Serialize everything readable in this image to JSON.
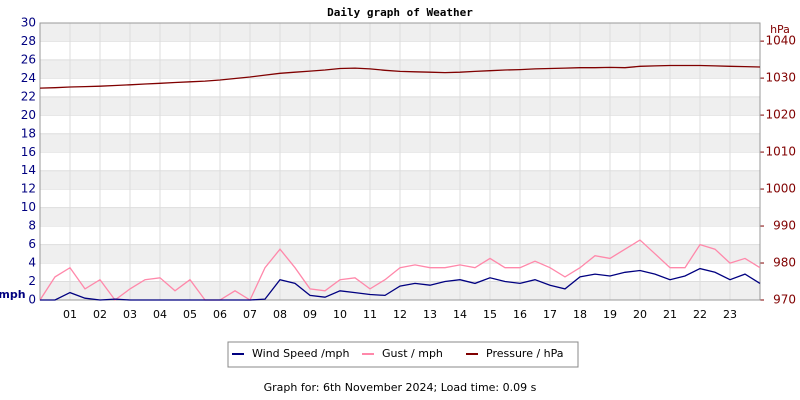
{
  "chart_data": {
    "type": "line",
    "title": "Daily graph of Weather",
    "ylabel": "mph",
    "y2label": "hPa",
    "footer": "Graph for: 6th November 2024; Load time: 0.09 s",
    "x": [
      0,
      0.5,
      1,
      1.5,
      2,
      2.5,
      3,
      3.5,
      4,
      4.5,
      5,
      5.5,
      6,
      6.5,
      7,
      7.5,
      8,
      8.5,
      9,
      9.5,
      10,
      10.5,
      11,
      11.5,
      12,
      12.5,
      13,
      13.5,
      14,
      14.5,
      15,
      15.5,
      16,
      16.5,
      17,
      17.5,
      18,
      18.5,
      19,
      19.5,
      20,
      20.5,
      21,
      21.5,
      22,
      22.5,
      23,
      23.5,
      24
    ],
    "xlim": [
      0,
      24
    ],
    "xticks": [
      {
        "value": 1,
        "label": "01"
      },
      {
        "value": 2,
        "label": "02"
      },
      {
        "value": 3,
        "label": "03"
      },
      {
        "value": 4,
        "label": "04"
      },
      {
        "value": 5,
        "label": "05"
      },
      {
        "value": 6,
        "label": "06"
      },
      {
        "value": 7,
        "label": "07"
      },
      {
        "value": 8,
        "label": "08"
      },
      {
        "value": 9,
        "label": "09"
      },
      10,
      11,
      12,
      13,
      14,
      15,
      16,
      17,
      18,
      19,
      20,
      21,
      22,
      23
    ],
    "ylim": [
      0,
      30
    ],
    "yticks": [
      0,
      2,
      4,
      6,
      8,
      10,
      12,
      14,
      16,
      18,
      20,
      22,
      24,
      26,
      28,
      30
    ],
    "y2lim": [
      970,
      1044.9
    ],
    "y2ticks": [
      970,
      980,
      990,
      1000,
      1010,
      1020,
      1030,
      1040
    ],
    "grid": true,
    "series": [
      {
        "name": "Wind Speed /mph",
        "color": "#000080",
        "values": [
          0,
          0,
          0.8,
          0.2,
          0,
          0.1,
          0,
          0,
          0,
          0,
          0,
          0,
          0,
          0,
          0,
          0.1,
          2.2,
          1.8,
          0.5,
          0.3,
          1.0,
          0.8,
          0.6,
          0.5,
          1.5,
          1.8,
          1.6,
          2.0,
          2.2,
          1.8,
          2.4,
          2.0,
          1.8,
          2.2,
          1.6,
          1.2,
          2.5,
          2.8,
          2.6,
          3.0,
          3.2,
          2.8,
          2.2,
          2.6,
          3.4,
          3.0,
          2.2,
          2.8,
          1.8
        ]
      },
      {
        "name": "Gust / mph",
        "color": "#ff88aa",
        "values": [
          0,
          2.5,
          3.5,
          1.2,
          2.2,
          0,
          1.2,
          2.2,
          2.4,
          1.0,
          2.2,
          0,
          0,
          1.0,
          0,
          3.5,
          5.5,
          3.5,
          1.2,
          1.0,
          2.2,
          2.4,
          1.2,
          2.2,
          3.5,
          3.8,
          3.5,
          3.5,
          3.8,
          3.5,
          4.5,
          3.5,
          3.5,
          4.2,
          3.5,
          2.5,
          3.5,
          4.8,
          4.5,
          5.5,
          6.5,
          5.0,
          3.5,
          3.5,
          6.0,
          5.5,
          4.0,
          4.5,
          3.5
        ]
      },
      {
        "name": "Pressure / hPa",
        "color": "#800000",
        "axis": "y2",
        "values": [
          1027.3,
          1027.4,
          1027.6,
          1027.7,
          1027.8,
          1028.0,
          1028.2,
          1028.4,
          1028.6,
          1028.8,
          1029.0,
          1029.2,
          1029.5,
          1029.9,
          1030.3,
          1030.8,
          1031.3,
          1031.6,
          1031.9,
          1032.2,
          1032.6,
          1032.7,
          1032.5,
          1032.1,
          1031.8,
          1031.7,
          1031.6,
          1031.5,
          1031.6,
          1031.8,
          1032.0,
          1032.2,
          1032.3,
          1032.5,
          1032.6,
          1032.7,
          1032.8,
          1032.8,
          1032.9,
          1032.8,
          1033.2,
          1033.3,
          1033.4,
          1033.4,
          1033.4,
          1033.3,
          1033.2,
          1033.1,
          1033.0
        ]
      }
    ]
  }
}
